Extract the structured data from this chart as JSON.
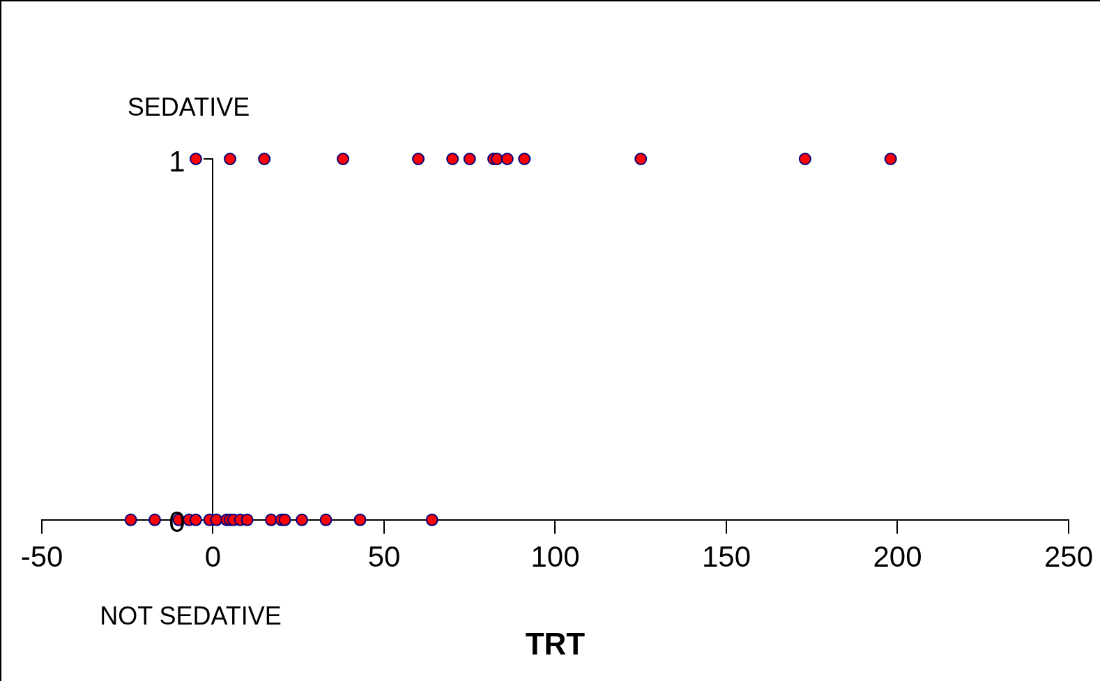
{
  "chart_data": {
    "type": "scatter",
    "xlabel": "TRT",
    "annotations": [
      "SEDATIVE",
      "NOT SEDATIVE"
    ],
    "xlim": [
      -50,
      250
    ],
    "xticks": [
      -50,
      0,
      50,
      100,
      150,
      200,
      250
    ],
    "ylim": [
      0,
      1
    ],
    "yticks": [
      0,
      1
    ],
    "grid": false,
    "legend": false,
    "marker": "circle",
    "series": [
      {
        "color": "#ff0000",
        "x": [
          -5,
          5,
          15,
          38,
          60,
          70,
          75,
          82,
          83,
          86,
          91,
          125,
          173,
          198
        ],
        "values": [
          1,
          1,
          1,
          1,
          1,
          1,
          1,
          1,
          1,
          1,
          1,
          1,
          1,
          1
        ]
      },
      {
        "color": "#ff0000",
        "x": [
          -24,
          -17,
          -10,
          -7,
          -5,
          -1,
          1,
          4,
          5,
          6,
          8,
          10,
          17,
          20,
          21,
          26,
          33,
          43,
          64
        ],
        "values": [
          0,
          0,
          0,
          0,
          0,
          0,
          0,
          0,
          0,
          0,
          0,
          0,
          0,
          0,
          0,
          0,
          0,
          0,
          0
        ]
      }
    ]
  }
}
